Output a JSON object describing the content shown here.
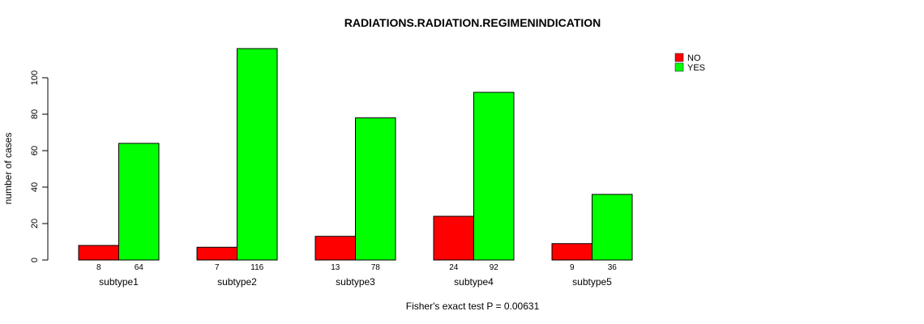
{
  "title": "RADIATIONS.RADIATION.REGIMENINDICATION",
  "chart_data": {
    "type": "bar",
    "grouped": true,
    "categories": [
      "subtype1",
      "subtype2",
      "subtype3",
      "subtype4",
      "subtype5"
    ],
    "series": [
      {
        "name": "NO",
        "color": "#ff0000",
        "values": [
          8,
          7,
          13,
          24,
          9
        ]
      },
      {
        "name": "YES",
        "color": "#00ff00",
        "values": [
          64,
          116,
          78,
          92,
          36
        ]
      }
    ],
    "ylabel": "number of cases",
    "yticks": [
      0,
      20,
      40,
      60,
      80,
      100
    ],
    "ylim": [
      0,
      116
    ],
    "grid": false,
    "legend_position": "top-right",
    "bar_value_labels": true,
    "footnote": "Fisher's exact test P = 0.00631"
  }
}
